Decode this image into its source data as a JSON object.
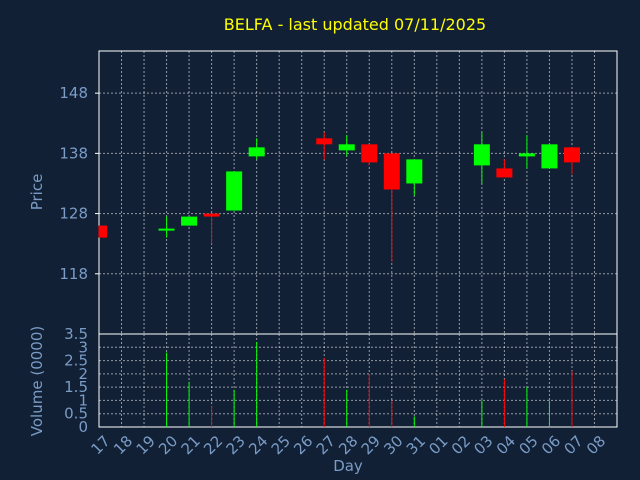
{
  "chart_data": {
    "type": "candlestick",
    "title": "BELFA - last updated 07/11/2025",
    "xlabel": "Day",
    "ylabel_price": "Price",
    "ylabel_volume": "Volume (0000)",
    "grid": true,
    "x_ticks": [
      "17",
      "18",
      "19",
      "20",
      "21",
      "22",
      "23",
      "24",
      "25",
      "26",
      "27",
      "28",
      "29",
      "30",
      "31",
      "01",
      "02",
      "03",
      "04",
      "05",
      "06",
      "07",
      "08"
    ],
    "price_ticks": [
      118,
      128,
      138,
      148
    ],
    "volume_ticks": [
      "0",
      "0.5",
      "1",
      "1.5",
      "2",
      "2.5",
      "3",
      "3.5"
    ],
    "price_ylim": [
      108,
      155
    ],
    "volume_ylim": [
      0,
      3.5
    ],
    "colors": {
      "background": "#112035",
      "up": "#00ff00",
      "down": "#ff0000",
      "title": "#ffff00",
      "axis_text": "#7a9cc6",
      "grid": "#ffffff",
      "frame": "#ffffff"
    },
    "candles": [
      {
        "day": "17",
        "open": 126,
        "high": 126,
        "low": 124,
        "close": 124,
        "volume": 0
      },
      {
        "day": "20",
        "open": 125.5,
        "high": 127.5,
        "low": 124,
        "close": 125.5,
        "volume": 2.8
      },
      {
        "day": "21",
        "open": 126,
        "high": 127.5,
        "low": 126,
        "close": 127.5,
        "volume": 1.7
      },
      {
        "day": "22",
        "open": 128,
        "high": 128,
        "low": 123,
        "close": 127.5,
        "volume": 0.8
      },
      {
        "day": "23",
        "open": 128.5,
        "high": 135,
        "low": 128.5,
        "close": 135,
        "volume": 1.4
      },
      {
        "day": "24",
        "open": 137.5,
        "high": 140.5,
        "low": 137,
        "close": 139,
        "volume": 3.2
      },
      {
        "day": "27",
        "open": 140.5,
        "high": 141.5,
        "low": 137,
        "close": 139.5,
        "volume": 2.6
      },
      {
        "day": "28",
        "open": 138.5,
        "high": 141,
        "low": 137.5,
        "close": 139.5,
        "volume": 1.4
      },
      {
        "day": "29",
        "open": 139.5,
        "high": 139.5,
        "low": 136,
        "close": 136.5,
        "volume": 2.0
      },
      {
        "day": "30",
        "open": 138,
        "high": 138,
        "low": 120,
        "close": 132,
        "volume": 1.0
      },
      {
        "day": "31",
        "open": 133,
        "high": 137,
        "low": 131,
        "close": 137,
        "volume": 0.4
      },
      {
        "day": "03",
        "open": 136,
        "high": 141.5,
        "low": 133,
        "close": 139.5,
        "volume": 1.0
      },
      {
        "day": "04",
        "open": 135.5,
        "high": 137,
        "low": 134,
        "close": 134,
        "volume": 1.8
      },
      {
        "day": "05",
        "open": 137.5,
        "high": 141,
        "low": 135.5,
        "close": 138,
        "volume": 1.5
      },
      {
        "day": "06",
        "open": 135.5,
        "high": 139.5,
        "low": 135.5,
        "close": 139.5,
        "volume": 1.0
      },
      {
        "day": "07",
        "open": 139,
        "high": 139,
        "low": 134.5,
        "close": 136.5,
        "volume": 2.1
      }
    ]
  }
}
